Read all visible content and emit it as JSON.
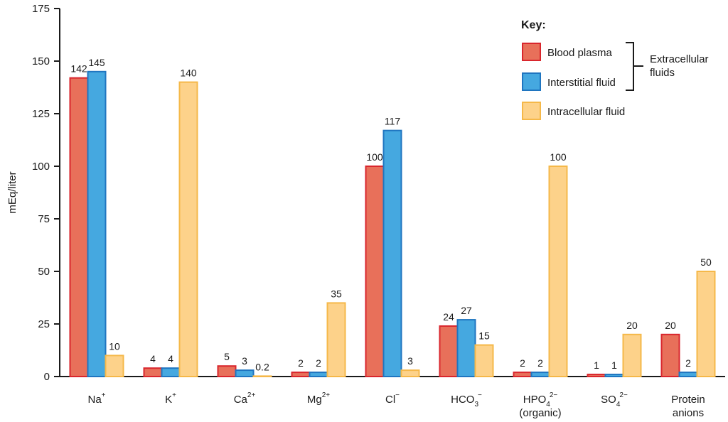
{
  "chart_data": {
    "type": "bar",
    "ylabel": "mEq/liter",
    "ylim": [
      0,
      175
    ],
    "yticks": [
      0,
      25,
      50,
      75,
      100,
      125,
      150,
      175
    ],
    "categories": [
      {
        "main": "Na",
        "sup": "+"
      },
      {
        "main": "K",
        "sup": "+"
      },
      {
        "main": "Ca",
        "sup": "2+"
      },
      {
        "main": "Mg",
        "sup": "2+"
      },
      {
        "main": "Cl",
        "sup": "−"
      },
      {
        "main": "HCO",
        "sub": "3",
        "sup": "−"
      },
      {
        "main": "HPO",
        "sub": "4",
        "sup": "2−",
        "line2": "(organic)"
      },
      {
        "main": "SO",
        "sub": "4",
        "sup": "2−"
      },
      {
        "main": "Protein",
        "line2": "anions"
      }
    ],
    "series": [
      {
        "name": "Blood plasma",
        "fill": "#e8705a",
        "stroke": "#d9262d",
        "values": [
          142,
          4,
          5,
          2,
          100,
          24,
          2,
          1,
          20
        ],
        "labels": [
          "142",
          "4",
          "5",
          "2",
          "100",
          "24",
          "2",
          "1",
          "20"
        ]
      },
      {
        "name": "Interstitial fluid",
        "fill": "#45a8e0",
        "stroke": "#1f75c0",
        "values": [
          145,
          4,
          3,
          2,
          117,
          27,
          2,
          1,
          2
        ],
        "labels": [
          "145",
          "4",
          "3",
          "2",
          "117",
          "27",
          "2",
          "1",
          "2"
        ]
      },
      {
        "name": "Intracellular fluid",
        "fill": "#fdd28a",
        "stroke": "#f5b849",
        "values": [
          10,
          140,
          0.2,
          35,
          3,
          15,
          100,
          20,
          50
        ],
        "labels": [
          "10",
          "140",
          "0.2",
          "35",
          "3",
          "15",
          "100",
          "20",
          "50"
        ]
      }
    ],
    "legend": {
      "title": "Key:",
      "position": "top-right",
      "group_label_lines": [
        "Extracellular",
        "fluids"
      ]
    }
  }
}
